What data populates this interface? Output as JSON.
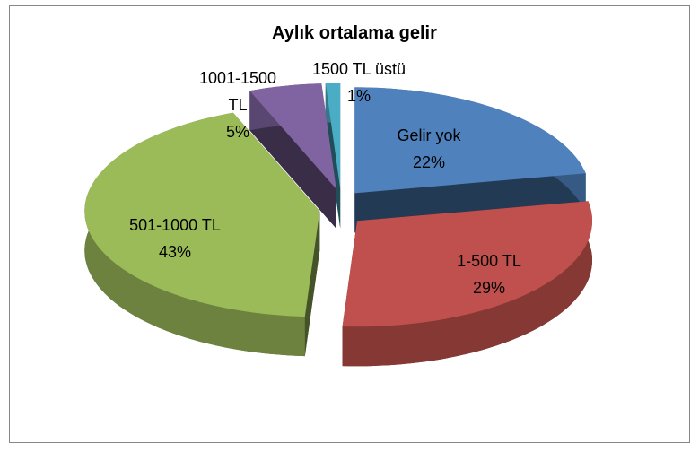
{
  "chart_data": {
    "type": "pie",
    "style": "3d-exploded",
    "title": "Aylık ortalama gelir",
    "categories": [
      "Gelir yok",
      "1-500 TL",
      "501-1000 TL",
      "1001-1500 TL",
      "1500 TL üstü"
    ],
    "values": [
      22,
      29,
      43,
      5,
      1
    ],
    "value_labels": [
      "22%",
      "29%",
      "43%",
      "5%",
      "1%"
    ],
    "colors": [
      "#4f81bd",
      "#c0504d",
      "#9bbb59",
      "#8064a2",
      "#4bacc6"
    ]
  }
}
